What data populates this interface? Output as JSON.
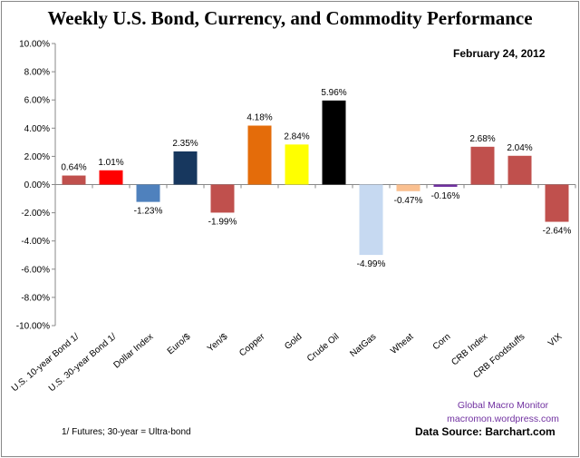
{
  "chart_data": {
    "type": "bar",
    "title": "Weekly U.S. Bond, Currency, and Commodity Performance",
    "annotation_date": "February 24, 2012",
    "categories": [
      "U.S. 10-year Bond 1/",
      "U.S. 30-year Bond 1/",
      "Dollar Index",
      "Euro/$",
      "Yen/$",
      "Copper",
      "Gold",
      "Crude Oil",
      "NatGas",
      "Wheat",
      "Corn",
      "CRB Index",
      "CRB Foodstuffs",
      "VIX"
    ],
    "values": [
      0.64,
      1.01,
      -1.23,
      2.35,
      -1.99,
      4.18,
      2.84,
      5.96,
      -4.99,
      -0.47,
      -0.16,
      2.68,
      2.04,
      -2.64
    ],
    "data_labels": [
      "0.64%",
      "1.01%",
      "-1.23%",
      "2.35%",
      "-1.99%",
      "4.18%",
      "2.84%",
      "5.96%",
      "-4.99%",
      "-0.47%",
      "-0.16%",
      "2.68%",
      "2.04%",
      "-2.64%"
    ],
    "colors": [
      "#c0504d",
      "#ff0000",
      "#4f81bd",
      "#17375e",
      "#c0504d",
      "#e46c0a",
      "#ffff00",
      "#000000",
      "#c6d9f1",
      "#fac090",
      "#7030a0",
      "#c0504d",
      "#c0504d",
      "#c0504d"
    ],
    "ylim": [
      -10,
      10
    ],
    "yticks": [
      "10.00%",
      "8.00%",
      "6.00%",
      "4.00%",
      "2.00%",
      "0.00%",
      "-2.00%",
      "-4.00%",
      "-6.00%",
      "-8.00%",
      "-10.00%"
    ],
    "grid": false,
    "legend": "none",
    "xlabel": "",
    "ylabel": ""
  },
  "footnote": "1/ Futures; 30-year = Ultra-bond",
  "watermark": [
    "Global Macro Monitor",
    "macromon.wordpress.com"
  ],
  "source": "Data Source:  Barchart.com"
}
